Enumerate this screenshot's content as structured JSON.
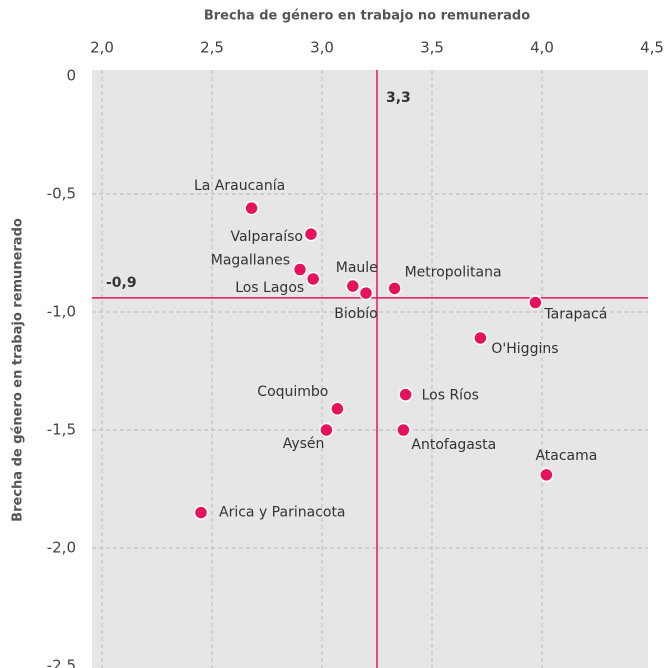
{
  "chart_data": {
    "type": "scatter",
    "x_label": "Brecha de género en trabajo no remunerado",
    "y_label": "Brecha de género en trabajo remunerado",
    "labels": [
      "La Araucanía",
      "Valparaíso",
      "Magallanes",
      "Los Lagos",
      "Maule",
      "Biobío",
      "Metropolitana",
      "Tarapacá",
      "O'Higgins",
      "Los Ríos",
      "Coquimbo",
      "Aysén",
      "Antofagasta",
      "Atacama",
      "Arica y Parinacota"
    ],
    "x": [
      2.68,
      2.95,
      2.9,
      2.96,
      3.14,
      3.2,
      3.33,
      3.97,
      3.72,
      3.38,
      3.07,
      3.02,
      3.37,
      4.02,
      2.45
    ],
    "y": [
      -0.56,
      -0.67,
      -0.82,
      -0.86,
      -0.89,
      -0.92,
      -0.9,
      -0.96,
      -1.11,
      -1.35,
      -1.41,
      -1.5,
      -1.5,
      -1.69,
      -1.85
    ],
    "color": "#e5135e",
    "xlim": [
      2.0,
      4.5
    ],
    "ylim": [
      -2.5,
      0
    ],
    "xticks": [
      {
        "value": 2.0,
        "label": "2,0"
      },
      {
        "value": 2.5,
        "label": "2,5"
      },
      {
        "value": 3.0,
        "label": "3,0"
      },
      {
        "value": 3.5,
        "label": "3,5"
      },
      {
        "value": 4.0,
        "label": "4,0"
      },
      {
        "value": 4.5,
        "label": "4,5"
      }
    ],
    "yticks": [
      0,
      {
        "value": -0.5,
        "label": "-0,5"
      },
      {
        "value": -1.0,
        "label": "-1,0"
      },
      {
        "value": -1.5,
        "label": "-1,5"
      },
      {
        "value": -2.0,
        "label": "-2,0"
      },
      {
        "value": -2.5,
        "label": "-2,5"
      }
    ],
    "grid": true,
    "reference_lines": [
      {
        "axis": "x",
        "value": 3.25,
        "label": "3,3"
      },
      {
        "axis": "y",
        "value": -0.94,
        "label": "-0,9"
      }
    ]
  }
}
